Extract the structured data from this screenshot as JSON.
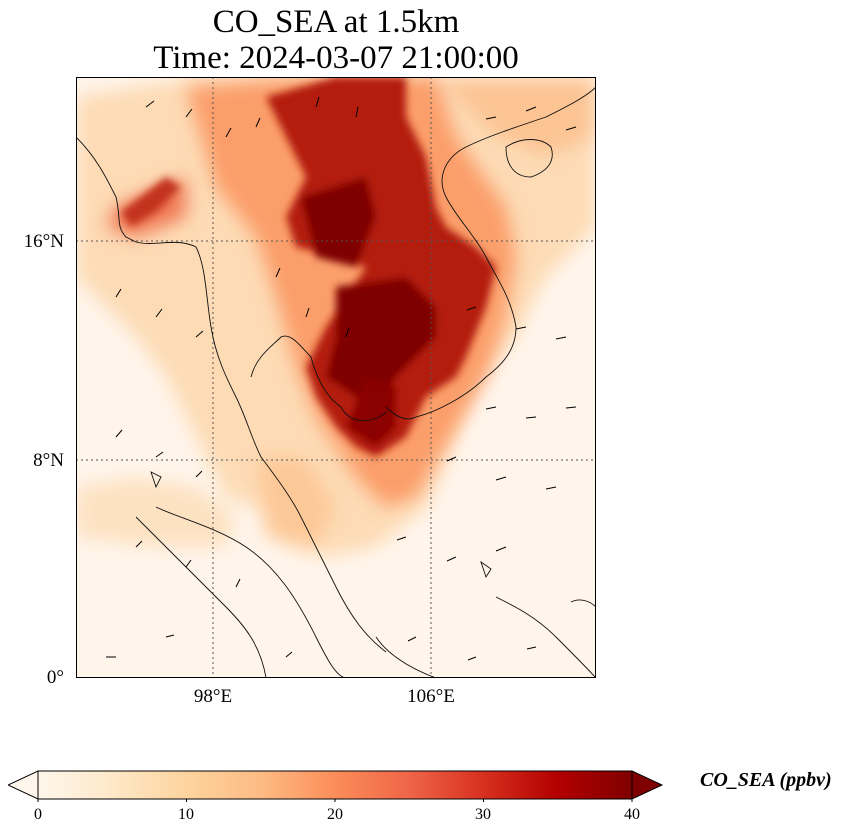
{
  "title": {
    "line1": "CO_SEA at 1.5km",
    "line2": "Time: 2024-03-07 21:00:00"
  },
  "map": {
    "extent": {
      "lon": [
        91,
        117
      ],
      "lat": [
        0,
        22
      ]
    },
    "gridlines": {
      "lons": [
        98,
        106
      ],
      "lats": [
        8,
        16
      ],
      "style": "dotted"
    },
    "lat_labels": [
      "16°N",
      "8°N",
      "0°"
    ],
    "lon_labels": [
      "98°E",
      "106°E"
    ],
    "background_color": "#fff5eb",
    "wind_vectors": "black arrows"
  },
  "colorbar": {
    "colormap": "OrRd",
    "colors": [
      "#fff7ec",
      "#fee8c8",
      "#fdd49e",
      "#fdbb84",
      "#fc8d59",
      "#ef6548",
      "#d7301f",
      "#b30000",
      "#7f0000"
    ],
    "range": [
      0,
      40
    ],
    "tick_labels": [
      "0",
      "10",
      "20",
      "30",
      "40"
    ],
    "label": "CO_SEA (ppbv)",
    "extend": "both"
  }
}
